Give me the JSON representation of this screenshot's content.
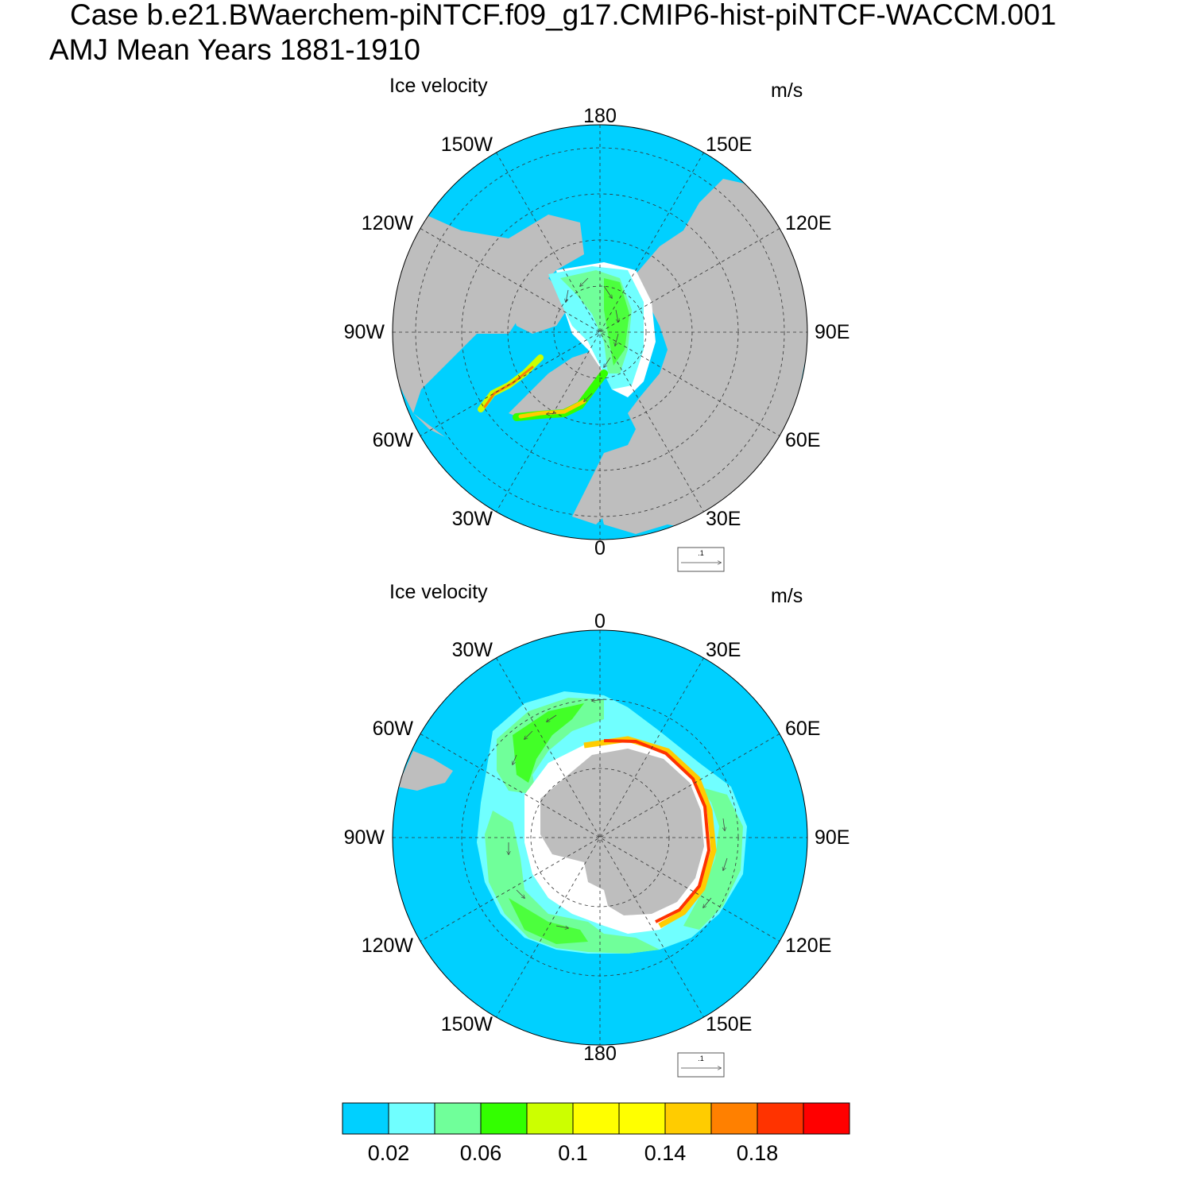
{
  "header": {
    "case_line": "Case b.e21.BWaerchem-piNTCF.f09_g17.CMIP6-hist-piNTCF-WACCM.001",
    "period_line": "AMJ Mean   Years 1881-1910"
  },
  "panels": [
    {
      "hemisphere": "north",
      "variable": "Ice velocity",
      "units": "m/s",
      "lon_labels": [
        "180",
        "150E",
        "120E",
        "90E",
        "60E",
        "30E",
        "0",
        "30W",
        "60W",
        "90W",
        "120W",
        "150W"
      ],
      "ref_vector_label": ".1"
    },
    {
      "hemisphere": "south",
      "variable": "Ice velocity",
      "units": "m/s",
      "lon_labels": [
        "0",
        "30E",
        "60E",
        "90E",
        "120E",
        "150E",
        "180",
        "150W",
        "120W",
        "90W",
        "60W",
        "30W"
      ],
      "ref_vector_label": ".1"
    }
  ],
  "colorbar": {
    "colors": [
      "#00d0ff",
      "#70ffff",
      "#70ff9a",
      "#33ff00",
      "#ccff00",
      "#ffff00",
      "#ffff00",
      "#ffcc00",
      "#ff8000",
      "#ff3300",
      "#ff0000"
    ],
    "tick_labels": [
      "0.02",
      "0.06",
      "0.1",
      "0.14",
      "0.18"
    ]
  },
  "colors": {
    "ocean": "#00d0ff",
    "land": "#bebebe",
    "no_ice": "#ffffff"
  }
}
